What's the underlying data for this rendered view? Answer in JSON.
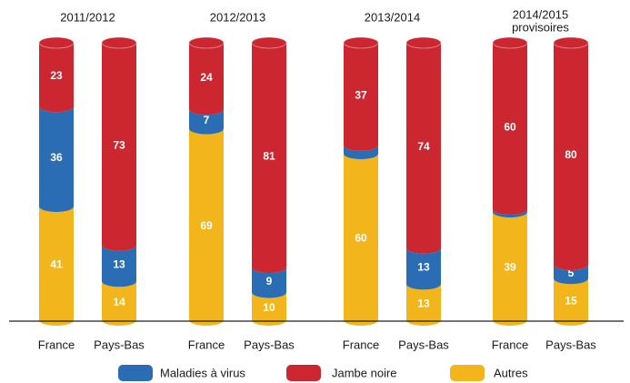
{
  "chart_data": {
    "type": "stacked-cylinder",
    "groups": [
      {
        "label": "2011/2012"
      },
      {
        "label": "2012/2013"
      },
      {
        "label": "2013/2014"
      },
      {
        "label": "2014/2015",
        "sublabel": "provisoires"
      }
    ],
    "categories": [
      "France",
      "Pays-Bas",
      "France",
      "Pays-Bas",
      "France",
      "Pays-Bas",
      "France",
      "Pays-Bas"
    ],
    "ylim": [
      0,
      100
    ],
    "series": [
      {
        "name": "Autres",
        "color": "#f2b61c",
        "values": [
          41,
          14,
          69,
          10,
          60,
          13,
          39,
          15
        ]
      },
      {
        "name": "Maladies à virus",
        "color": "#2a6db5",
        "values": [
          36,
          13,
          7,
          9,
          3,
          13,
          1,
          5
        ]
      },
      {
        "name": "Jambe noire",
        "color": "#cc2630",
        "values": [
          23,
          73,
          24,
          81,
          37,
          74,
          60,
          80
        ]
      }
    ]
  }
}
